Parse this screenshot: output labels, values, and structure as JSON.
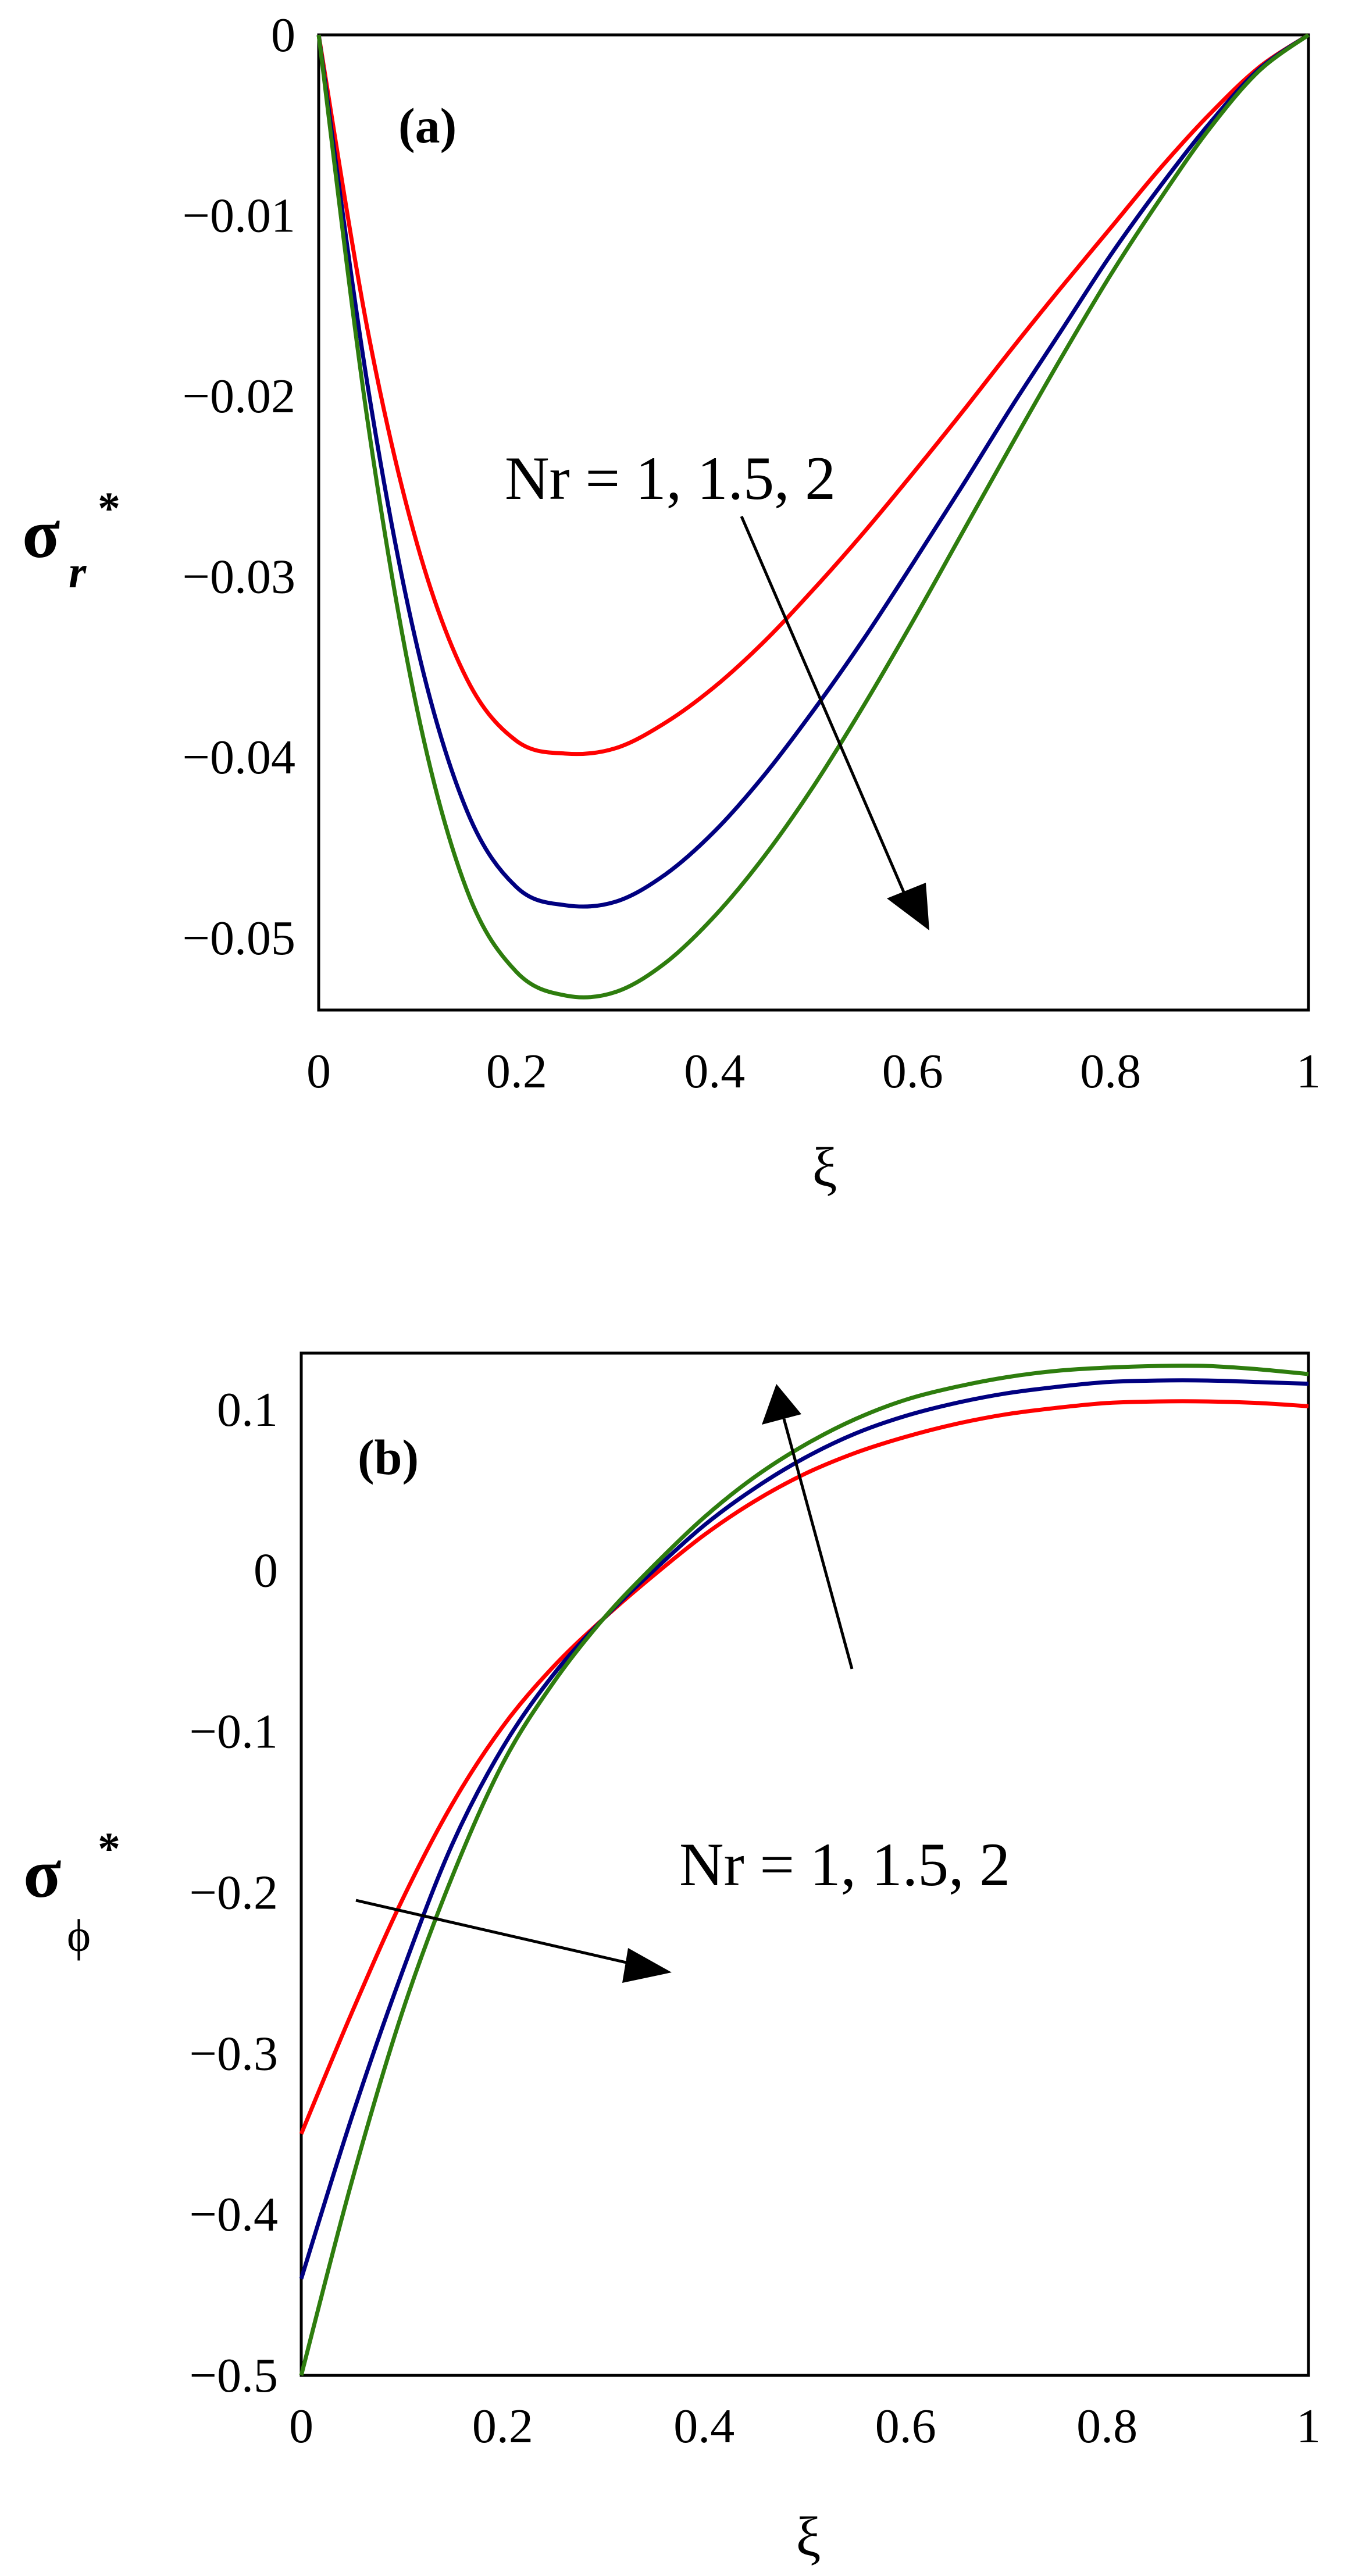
{
  "chart_data": [
    {
      "type": "line",
      "panel_label": "(a)",
      "title": "",
      "xlabel": "ξ",
      "ylabel": {
        "main": "σ",
        "subscript": "r",
        "superscript": "*"
      },
      "xlim": [
        0,
        1
      ],
      "ylim": [
        -0.054,
        0
      ],
      "xticks": [
        0,
        0.2,
        0.4,
        0.6,
        0.8,
        1
      ],
      "xtick_labels": [
        "0",
        "0.2",
        "0.4",
        "0.6",
        "0.8",
        "1"
      ],
      "yticks": [
        0,
        -0.01,
        -0.02,
        -0.03,
        -0.04,
        -0.05
      ],
      "ytick_labels": [
        "0",
        "−0.01",
        "−0.02",
        "−0.03",
        "−0.04",
        "−0.05"
      ],
      "grid": false,
      "annotation": "Nr = 1, 1.5, 2",
      "x": [
        0,
        0.05,
        0.1,
        0.15,
        0.2,
        0.25,
        0.3,
        0.35,
        0.4,
        0.45,
        0.5,
        0.55,
        0.6,
        0.65,
        0.7,
        0.75,
        0.8,
        0.85,
        0.9,
        0.95,
        1
      ],
      "series": [
        {
          "name": "Nr = 1",
          "color": "#ff0000",
          "values": [
            0,
            -0.0165,
            -0.0283,
            -0.0357,
            -0.0391,
            -0.0398,
            -0.0395,
            -0.0381,
            -0.0361,
            -0.0336,
            -0.0307,
            -0.0276,
            -0.0243,
            -0.0209,
            -0.0174,
            -0.014,
            -0.0107,
            -0.0074,
            -0.0044,
            -0.0018,
            0
          ]
        },
        {
          "name": "Nr = 1.5",
          "color": "#000080",
          "values": [
            0,
            -0.0196,
            -0.034,
            -0.043,
            -0.0472,
            -0.0482,
            -0.048,
            -0.0465,
            -0.0441,
            -0.041,
            -0.0374,
            -0.0335,
            -0.0293,
            -0.025,
            -0.0206,
            -0.0164,
            -0.0122,
            -0.0084,
            -0.0049,
            -0.0019,
            0
          ]
        },
        {
          "name": "Nr = 2",
          "color": "#2e7d0e",
          "values": [
            0,
            -0.0216,
            -0.0375,
            -0.0474,
            -0.0519,
            -0.0532,
            -0.053,
            -0.0514,
            -0.0488,
            -0.0455,
            -0.0416,
            -0.0372,
            -0.0325,
            -0.0276,
            -0.0227,
            -0.0179,
            -0.0133,
            -0.0091,
            -0.0052,
            -0.002,
            0
          ]
        }
      ]
    },
    {
      "type": "line",
      "panel_label": "(b)",
      "title": "",
      "xlabel": "ξ",
      "ylabel": {
        "main": "σ",
        "subscript": "ϕ",
        "superscript": "*"
      },
      "xlim": [
        0,
        1
      ],
      "ylim": [
        -0.5,
        0.135
      ],
      "xticks": [
        0,
        0.2,
        0.4,
        0.6,
        0.8,
        1
      ],
      "xtick_labels": [
        "0",
        "0.2",
        "0.4",
        "0.6",
        "0.8",
        "1"
      ],
      "yticks": [
        0.1,
        0,
        -0.1,
        -0.2,
        -0.3,
        -0.4,
        -0.5
      ],
      "ytick_labels": [
        "0.1",
        "0",
        "−0.1",
        "−0.2",
        "−0.3",
        "−0.4",
        "−0.5"
      ],
      "grid": false,
      "annotation": "Nr = 1, 1.5, 2",
      "x": [
        0,
        0.05,
        0.1,
        0.15,
        0.2,
        0.25,
        0.3,
        0.35,
        0.4,
        0.45,
        0.5,
        0.55,
        0.6,
        0.65,
        0.7,
        0.75,
        0.8,
        0.85,
        0.9,
        0.95,
        1
      ],
      "series": [
        {
          "name": "Nr = 1",
          "color": "#ff0000",
          "values": [
            -0.35,
            -0.275,
            -0.205,
            -0.145,
            -0.097,
            -0.06,
            -0.03,
            -0.003,
            0.022,
            0.043,
            0.06,
            0.073,
            0.083,
            0.091,
            0.097,
            0.101,
            0.104,
            0.105,
            0.105,
            0.104,
            0.102
          ]
        },
        {
          "name": "Nr = 1.5",
          "color": "#000080",
          "values": [
            -0.44,
            -0.34,
            -0.25,
            -0.17,
            -0.11,
            -0.065,
            -0.03,
            0.0,
            0.028,
            0.051,
            0.07,
            0.085,
            0.096,
            0.104,
            0.11,
            0.114,
            0.117,
            0.118,
            0.118,
            0.117,
            0.116
          ]
        },
        {
          "name": "Nr = 2",
          "color": "#2e7d0e",
          "values": [
            -0.5,
            -0.38,
            -0.275,
            -0.19,
            -0.12,
            -0.07,
            -0.03,
            0.003,
            0.033,
            0.058,
            0.078,
            0.094,
            0.106,
            0.114,
            0.12,
            0.124,
            0.126,
            0.127,
            0.127,
            0.125,
            0.122
          ]
        }
      ]
    }
  ]
}
